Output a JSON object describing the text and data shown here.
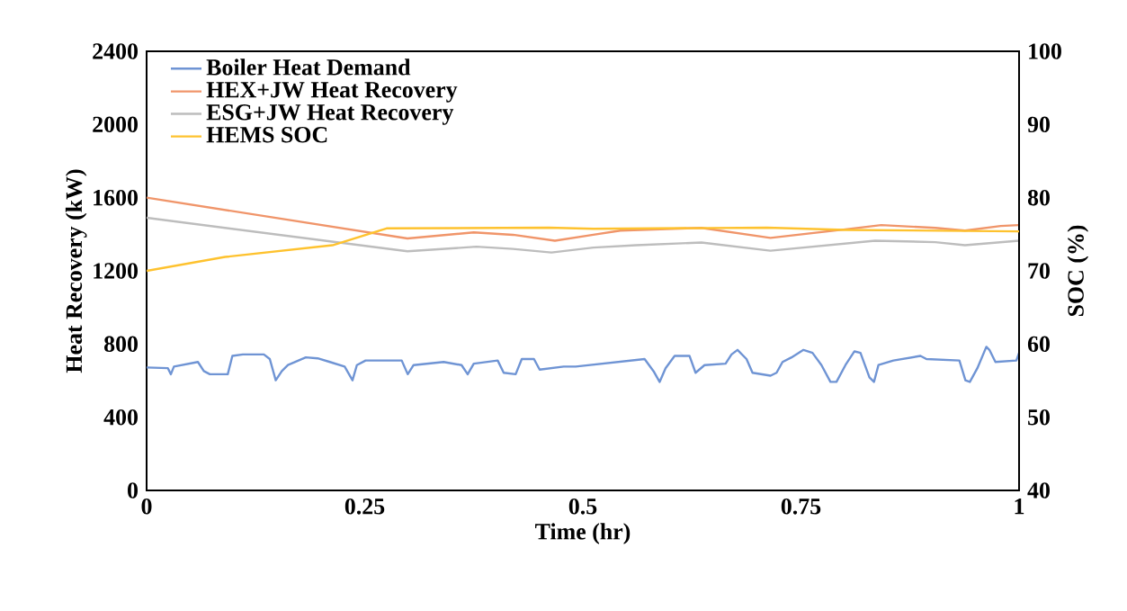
{
  "chart_data": {
    "type": "line",
    "xlabel": "Time (hr)",
    "ylabel": "Heat Recovery (kW)",
    "y2label": "SOC (%)",
    "xlim": [
      0,
      1
    ],
    "xticks": [
      0,
      0.25,
      0.5,
      0.75,
      1
    ],
    "ylim": [
      0,
      2400
    ],
    "yticks": [
      0,
      400,
      800,
      1200,
      1600,
      2000,
      2400
    ],
    "y2lim": [
      40,
      100
    ],
    "y2ticks": [
      40,
      50,
      60,
      70,
      80,
      90,
      100
    ],
    "legend": "top left",
    "grid": false,
    "marker": "none",
    "line_style": "solid",
    "series": [
      {
        "name": "Boiler Heat Demand",
        "color": "#6f94d4",
        "x": [
          0.0,
          0.0244,
          0.0278,
          0.0313,
          0.0588,
          0.0656,
          0.0725,
          0.093,
          0.0983,
          0.1103,
          0.1344,
          0.1412,
          0.148,
          0.155,
          0.162,
          0.1825,
          0.196,
          0.21,
          0.227,
          0.236,
          0.241,
          0.251,
          0.2924,
          0.2993,
          0.306,
          0.3405,
          0.361,
          0.368,
          0.375,
          0.4024,
          0.4093,
          0.423,
          0.43,
          0.444,
          0.4505,
          0.478,
          0.4918,
          0.5708,
          0.581,
          0.588,
          0.5948,
          0.6052,
          0.6223,
          0.6292,
          0.6395,
          0.6636,
          0.6704,
          0.6773,
          0.6876,
          0.6945,
          0.7151,
          0.722,
          0.7289,
          0.7392,
          0.7529,
          0.7632,
          0.7735,
          0.7838,
          0.7907,
          0.801,
          0.8113,
          0.8182,
          0.8285,
          0.8337,
          0.8388,
          0.856,
          0.887,
          0.8938,
          0.9316,
          0.9385,
          0.9436,
          0.9522,
          0.9625,
          0.966,
          0.9729,
          0.9969,
          1.0
        ],
        "values": [
          672,
          668,
          635,
          677,
          702,
          652,
          635,
          635,
          735,
          743,
          743,
          718,
          602,
          652,
          685,
          727,
          722,
          702,
          677,
          602,
          685,
          710,
          710,
          635,
          685,
          702,
          685,
          635,
          693,
          710,
          643,
          635,
          718,
          718,
          660,
          677,
          677,
          718,
          652,
          593,
          668,
          735,
          735,
          643,
          685,
          693,
          743,
          768,
          718,
          643,
          627,
          643,
          702,
          727,
          768,
          752,
          685,
          593,
          593,
          685,
          760,
          752,
          618,
          593,
          685,
          710,
          735,
          718,
          710,
          602,
          593,
          668,
          785,
          768,
          702,
          710,
          752
        ]
      },
      {
        "name": "HEX+JW Heat Recovery",
        "color": "#f0956a",
        "x": [
          0,
          0.299,
          0.375,
          0.42,
          0.468,
          0.512,
          0.543,
          0.636,
          0.715,
          0.801,
          0.842,
          0.904,
          0.938,
          0.979,
          1
        ],
        "values": [
          1600,
          1377,
          1410,
          1397,
          1365,
          1397,
          1420,
          1435,
          1380,
          1427,
          1450,
          1435,
          1420,
          1445,
          1450
        ]
      },
      {
        "name": "ESG+JW Heat Recovery",
        "color": "#bdbdbd",
        "x": [
          0,
          0.299,
          0.378,
          0.42,
          0.464,
          0.512,
          0.561,
          0.636,
          0.715,
          0.835,
          0.904,
          0.938,
          1
        ],
        "values": [
          1490,
          1307,
          1332,
          1320,
          1300,
          1327,
          1340,
          1355,
          1310,
          1365,
          1357,
          1340,
          1365
        ]
      },
      {
        "name": "HEMS SOC",
        "color": "#fec22e",
        "axis": "y2",
        "x": [
          0,
          0.09,
          0.213,
          0.275,
          0.461,
          0.512,
          0.711,
          0.801,
          1
        ],
        "values": [
          70,
          71.9,
          73.5,
          75.8,
          75.9,
          75.75,
          75.9,
          75.6,
          75.4
        ]
      }
    ]
  }
}
